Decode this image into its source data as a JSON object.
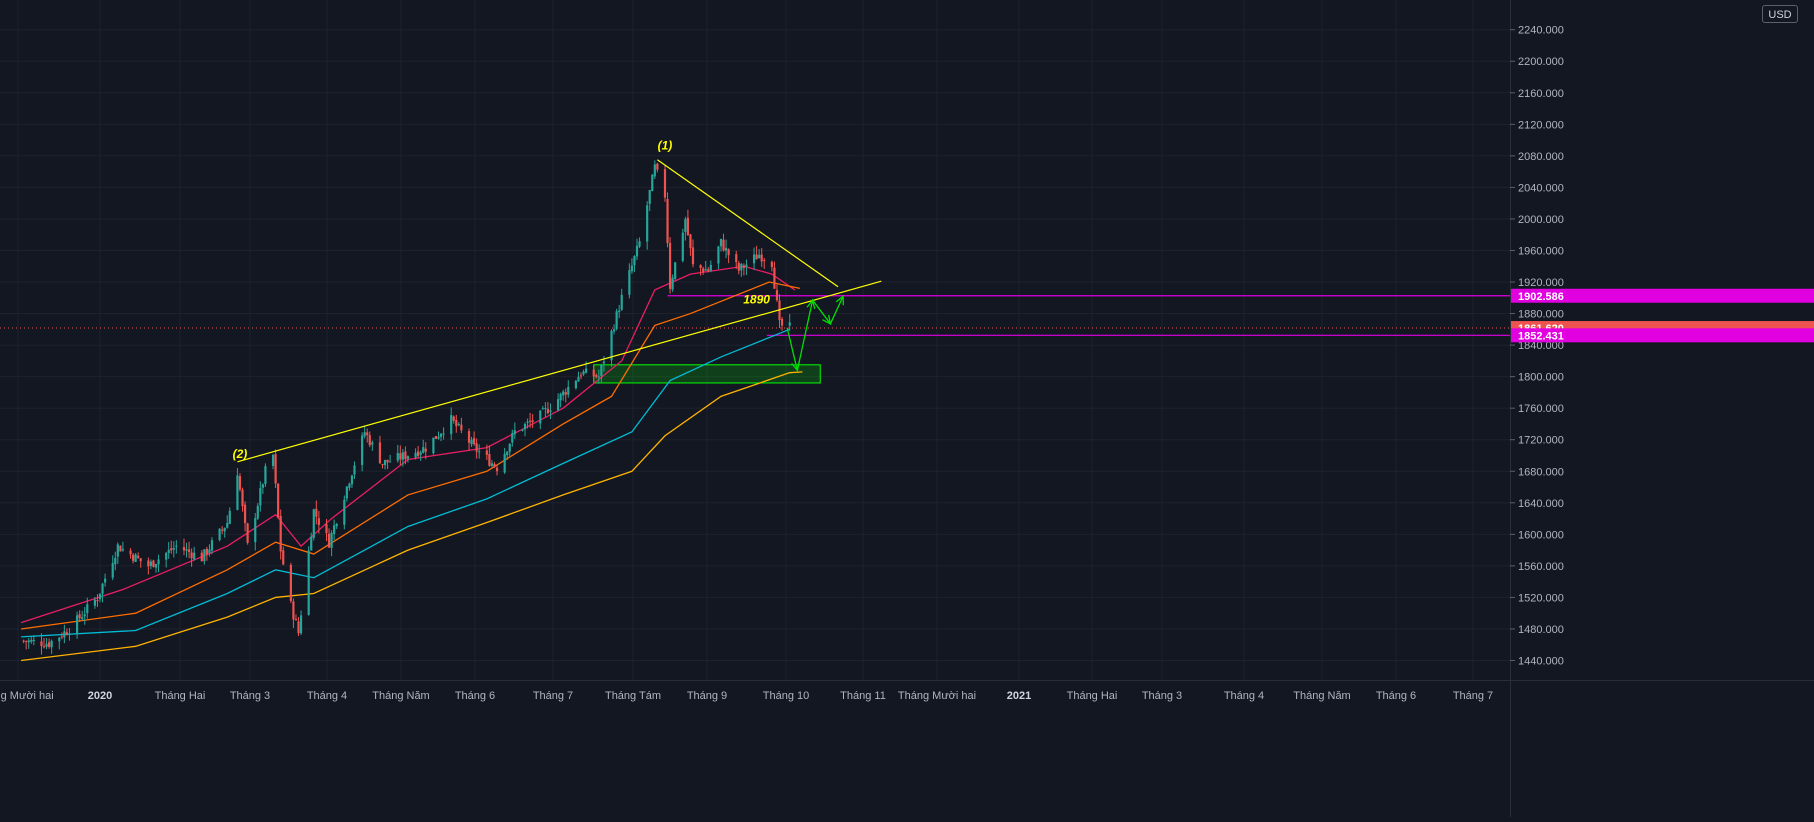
{
  "currency_label": "USD",
  "colors": {
    "background": "#131722",
    "grid": "#1e222d",
    "axis_text": "#b2b5be",
    "candle_up": "#26a69a",
    "candle_down": "#ef5350",
    "ema_red": "#e91e63",
    "ema_orange": "#ff6d00",
    "ema_blue": "#00bcd4",
    "ema_yellow": "#ffb300",
    "trendline": "#ffff00",
    "horizontal_level": "#e000e0",
    "projection_arrow": "#00e000",
    "support_zone": "#00ff00"
  },
  "chart_data": {
    "type": "candlestick",
    "x_ticks": [
      "háng Mười hai",
      "2020",
      "Tháng Hai",
      "Tháng 3",
      "Tháng 4",
      "Tháng Năm",
      "Tháng 6",
      "Tháng 7",
      "Tháng Tám",
      "Tháng 9",
      "Tháng 10",
      "Tháng 11",
      "Tháng Mười hai",
      "2021",
      "Tháng Hai",
      "Tháng 3",
      "Tháng 4",
      "Tháng Năm",
      "Tháng 6",
      "Tháng 7"
    ],
    "bold_ticks": [
      "2020",
      "2021"
    ],
    "y_ticks": [
      "2240.000",
      "2200.000",
      "2160.000",
      "2120.000",
      "2080.000",
      "2040.000",
      "2000.000",
      "1960.000",
      "1920.000",
      "1880.000",
      "1840.000",
      "1800.000",
      "1760.000",
      "1720.000",
      "1680.000",
      "1640.000",
      "1600.000",
      "1560.000",
      "1520.000",
      "1480.000",
      "1440.000"
    ],
    "price_labels": [
      {
        "value": "1902.586",
        "kind": "level"
      },
      {
        "value": "1861.620",
        "kind": "last"
      },
      {
        "value": "1852.431",
        "kind": "level"
      }
    ],
    "annotations": [
      "(1)",
      "(2)",
      "1890"
    ],
    "ylim": [
      1415,
      2260
    ],
    "price_path": [
      [
        "2019-12-01",
        1465
      ],
      [
        "2019-12-12",
        1462
      ],
      [
        "2019-12-20",
        1480
      ],
      [
        "2019-12-31",
        1520
      ],
      [
        "2020-01-08",
        1585
      ],
      [
        "2020-01-20",
        1560
      ],
      [
        "2020-01-31",
        1585
      ],
      [
        "2020-02-10",
        1570
      ],
      [
        "2020-02-20",
        1615
      ],
      [
        "2020-02-24",
        1680
      ],
      [
        "2020-02-28",
        1585
      ],
      [
        "2020-03-06",
        1680
      ],
      [
        "2020-03-09",
        1700
      ],
      [
        "2020-03-12",
        1580
      ],
      [
        "2020-03-16",
        1510
      ],
      [
        "2020-03-19",
        1475
      ],
      [
        "2020-03-25",
        1630
      ],
      [
        "2020-03-31",
        1590
      ],
      [
        "2020-04-06",
        1650
      ],
      [
        "2020-04-14",
        1730
      ],
      [
        "2020-04-21",
        1690
      ],
      [
        "2020-04-30",
        1700
      ],
      [
        "2020-05-08",
        1710
      ],
      [
        "2020-05-18",
        1745
      ],
      [
        "2020-05-27",
        1710
      ],
      [
        "2020-06-05",
        1685
      ],
      [
        "2020-06-12",
        1730
      ],
      [
        "2020-06-22",
        1750
      ],
      [
        "2020-06-30",
        1775
      ],
      [
        "2020-07-08",
        1805
      ],
      [
        "2020-07-15",
        1800
      ],
      [
        "2020-07-24",
        1900
      ],
      [
        "2020-07-31",
        1970
      ],
      [
        "2020-08-06",
        2065
      ],
      [
        "2020-08-10",
        2030
      ],
      [
        "2020-08-12",
        1915
      ],
      [
        "2020-08-18",
        2000
      ],
      [
        "2020-08-21",
        1940
      ],
      [
        "2020-08-27",
        1935
      ],
      [
        "2020-09-01",
        1970
      ],
      [
        "2020-09-08",
        1935
      ],
      [
        "2020-09-16",
        1955
      ],
      [
        "2020-09-21",
        1945
      ],
      [
        "2020-09-24",
        1865
      ],
      [
        "2020-09-28",
        1862
      ]
    ],
    "emas": [
      {
        "color_key": "ema_red",
        "points": [
          [
            "2019-12-01",
            1488
          ],
          [
            "2020-01-10",
            1530
          ],
          [
            "2020-02-20",
            1585
          ],
          [
            "2020-03-10",
            1625
          ],
          [
            "2020-03-20",
            1585
          ],
          [
            "2020-04-01",
            1620
          ],
          [
            "2020-05-01",
            1695
          ],
          [
            "2020-06-01",
            1710
          ],
          [
            "2020-07-01",
            1760
          ],
          [
            "2020-07-24",
            1820
          ],
          [
            "2020-08-06",
            1910
          ],
          [
            "2020-08-20",
            1930
          ],
          [
            "2020-09-10",
            1940
          ],
          [
            "2020-09-21",
            1930
          ],
          [
            "2020-09-30",
            1910
          ]
        ]
      },
      {
        "color_key": "ema_orange",
        "points": [
          [
            "2019-12-01",
            1480
          ],
          [
            "2020-01-15",
            1500
          ],
          [
            "2020-02-20",
            1555
          ],
          [
            "2020-03-10",
            1590
          ],
          [
            "2020-03-25",
            1575
          ],
          [
            "2020-05-01",
            1650
          ],
          [
            "2020-06-01",
            1680
          ],
          [
            "2020-07-01",
            1740
          ],
          [
            "2020-07-20",
            1775
          ],
          [
            "2020-08-06",
            1865
          ],
          [
            "2020-08-20",
            1880
          ],
          [
            "2020-09-20",
            1920
          ],
          [
            "2020-10-02",
            1912
          ]
        ]
      },
      {
        "color_key": "ema_blue",
        "points": [
          [
            "2019-12-01",
            1470
          ],
          [
            "2020-01-15",
            1478
          ],
          [
            "2020-02-20",
            1525
          ],
          [
            "2020-03-10",
            1555
          ],
          [
            "2020-03-25",
            1545
          ],
          [
            "2020-05-01",
            1610
          ],
          [
            "2020-06-01",
            1645
          ],
          [
            "2020-07-01",
            1690
          ],
          [
            "2020-07-28",
            1730
          ],
          [
            "2020-08-12",
            1795
          ],
          [
            "2020-09-01",
            1825
          ],
          [
            "2020-09-28",
            1860
          ]
        ]
      },
      {
        "color_key": "ema_yellow",
        "points": [
          [
            "2019-12-01",
            1440
          ],
          [
            "2020-01-15",
            1458
          ],
          [
            "2020-02-20",
            1495
          ],
          [
            "2020-03-10",
            1520
          ],
          [
            "2020-03-25",
            1525
          ],
          [
            "2020-05-01",
            1580
          ],
          [
            "2020-06-01",
            1615
          ],
          [
            "2020-07-01",
            1650
          ],
          [
            "2020-07-28",
            1680
          ],
          [
            "2020-08-10",
            1725
          ],
          [
            "2020-09-01",
            1775
          ],
          [
            "2020-09-28",
            1805
          ],
          [
            "2020-10-03",
            1806
          ]
        ]
      }
    ],
    "trendlines": [
      {
        "name": "upper-rising-trendline",
        "from": [
          "2020-02-24",
          1692
        ],
        "to": [
          "2020-11-03",
          1921
        ]
      },
      {
        "name": "descending-trendline",
        "from": [
          "2020-08-07",
          2075
        ],
        "to": [
          "2020-10-17",
          1914
        ]
      }
    ],
    "horizontal_levels": [
      {
        "value": 1902.586,
        "from": "2020-08-11"
      },
      {
        "value": 1852.431,
        "from": "2020-09-19"
      },
      {
        "value": 1861.62,
        "style": "dotted"
      }
    ],
    "support_zone": {
      "x0": "2020-07-13",
      "x1": "2020-10-10",
      "y0": 1792,
      "y1": 1815
    },
    "projection_path": [
      [
        "2020-09-27",
        1862
      ],
      [
        "2020-10-01",
        1808
      ],
      [
        "2020-10-07",
        1897
      ],
      [
        "2020-10-14",
        1867
      ],
      [
        "2020-10-19",
        1902
      ]
    ]
  }
}
